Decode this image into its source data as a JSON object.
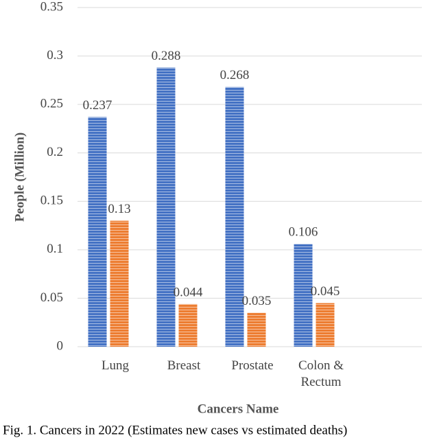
{
  "chart_data": {
    "type": "bar",
    "y_label": "People (Million)",
    "x_label": "Cancers Name",
    "caption": "Fig. 1. Cancers in 2022 (Estimates new cases vs estimated deaths)",
    "categories": [
      "Lung",
      "Breast",
      "Prostate",
      "Colon & Rectum"
    ],
    "series": [
      {
        "color": "#4472c4",
        "values": [
          0.237,
          0.288,
          0.268,
          0.106
        ]
      },
      {
        "color": "#ed7d31",
        "values": [
          0.13,
          0.044,
          0.035,
          0.045
        ]
      }
    ],
    "ylim": [
      0,
      0.35
    ],
    "yticks": [
      0,
      0.05,
      0.1,
      0.15,
      0.2,
      0.25,
      0.3,
      0.35
    ],
    "grid": true
  }
}
